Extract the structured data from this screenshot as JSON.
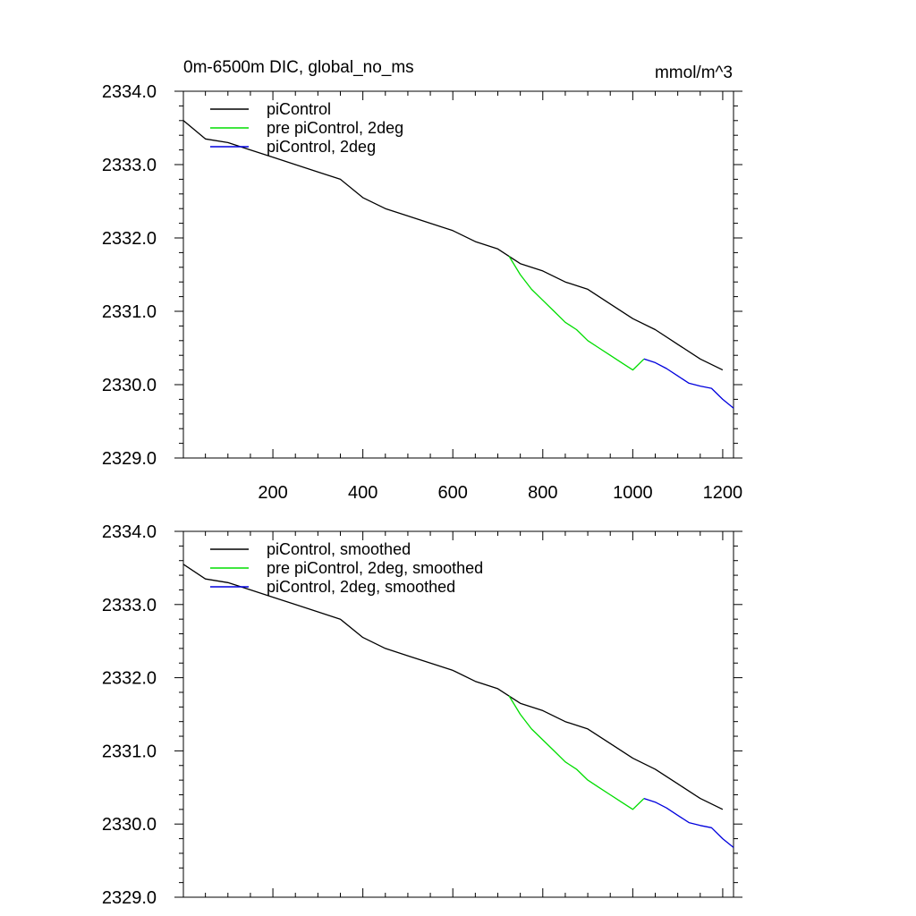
{
  "page": {
    "title": "0m-6500m DIC, global_no_ms",
    "units": "mmol/m^3"
  },
  "chart_data": [
    {
      "type": "line",
      "title": "0m-6500m DIC, global_no_ms",
      "units_label": "mmol/m^3",
      "xlabel": "",
      "ylabel": "",
      "xlim": [
        1,
        1224
      ],
      "ylim": [
        2329.0,
        2334.0
      ],
      "x_ticks": [
        200,
        400,
        600,
        800,
        1000,
        1200
      ],
      "x_tick_labels": [
        "200",
        "400",
        "600",
        "800",
        "1000",
        "1200"
      ],
      "y_ticks": [
        2329.0,
        2330.0,
        2331.0,
        2332.0,
        2333.0,
        2334.0
      ],
      "y_tick_labels": [
        "2329.0",
        "2330.0",
        "2331.0",
        "2332.0",
        "2333.0",
        "2334.0"
      ],
      "grid": false,
      "legend_position": "top-left",
      "series": [
        {
          "name": "piControl",
          "color": "#000000",
          "x": [
            1,
            50,
            100,
            150,
            200,
            250,
            300,
            350,
            400,
            450,
            500,
            550,
            600,
            650,
            700,
            750,
            800,
            850,
            900,
            950,
            1000,
            1050,
            1100,
            1150,
            1200
          ],
          "y": [
            2333.6,
            2333.35,
            2333.3,
            2333.2,
            2333.1,
            2333.0,
            2332.9,
            2332.8,
            2332.55,
            2332.4,
            2332.3,
            2332.2,
            2332.1,
            2331.95,
            2331.85,
            2331.65,
            2331.55,
            2331.4,
            2331.3,
            2331.1,
            2330.9,
            2330.75,
            2330.55,
            2330.35,
            2330.2
          ]
        },
        {
          "name": "pre piControl, 2deg",
          "color": "#00dd00",
          "x": [
            725,
            750,
            775,
            800,
            825,
            850,
            875,
            900,
            925,
            950,
            975,
            1000,
            1025
          ],
          "y": [
            2331.75,
            2331.5,
            2331.3,
            2331.15,
            2331.0,
            2330.85,
            2330.75,
            2330.6,
            2330.5,
            2330.4,
            2330.3,
            2330.2,
            2330.35
          ]
        },
        {
          "name": "piControl, 2deg",
          "color": "#0000dd",
          "x": [
            1025,
            1050,
            1075,
            1100,
            1125,
            1150,
            1175,
            1200,
            1224
          ],
          "y": [
            2330.35,
            2330.3,
            2330.22,
            2330.12,
            2330.02,
            2329.98,
            2329.95,
            2329.8,
            2329.68
          ]
        }
      ]
    },
    {
      "type": "line",
      "title": "",
      "xlabel": "",
      "ylabel": "",
      "xlim": [
        1,
        1224
      ],
      "ylim": [
        2329.0,
        2334.0
      ],
      "x_ticks": [
        200,
        400,
        600,
        800,
        1000,
        1200
      ],
      "x_tick_labels": [],
      "y_ticks": [
        2329.0,
        2330.0,
        2331.0,
        2332.0,
        2333.0,
        2334.0
      ],
      "y_tick_labels": [
        "2329.0",
        "2330.0",
        "2331.0",
        "2332.0",
        "2333.0",
        "2334.0"
      ],
      "grid": false,
      "legend_position": "top-left",
      "series": [
        {
          "name": "piControl, smoothed",
          "color": "#000000",
          "x": [
            1,
            50,
            100,
            150,
            200,
            250,
            300,
            350,
            400,
            450,
            500,
            550,
            600,
            650,
            700,
            750,
            800,
            850,
            900,
            950,
            1000,
            1050,
            1100,
            1150,
            1200
          ],
          "y": [
            2333.55,
            2333.35,
            2333.3,
            2333.2,
            2333.1,
            2333.0,
            2332.9,
            2332.8,
            2332.55,
            2332.4,
            2332.3,
            2332.2,
            2332.1,
            2331.95,
            2331.85,
            2331.65,
            2331.55,
            2331.4,
            2331.3,
            2331.1,
            2330.9,
            2330.75,
            2330.55,
            2330.35,
            2330.2
          ]
        },
        {
          "name": "pre piControl, 2deg, smoothed",
          "color": "#00dd00",
          "x": [
            725,
            750,
            775,
            800,
            825,
            850,
            875,
            900,
            925,
            950,
            975,
            1000,
            1025
          ],
          "y": [
            2331.75,
            2331.5,
            2331.3,
            2331.15,
            2331.0,
            2330.85,
            2330.75,
            2330.6,
            2330.5,
            2330.4,
            2330.3,
            2330.2,
            2330.35
          ]
        },
        {
          "name": "piControl, 2deg, smoothed",
          "color": "#0000dd",
          "x": [
            1025,
            1050,
            1075,
            1100,
            1125,
            1150,
            1175,
            1200,
            1224
          ],
          "y": [
            2330.35,
            2330.3,
            2330.22,
            2330.12,
            2330.02,
            2329.98,
            2329.95,
            2329.8,
            2329.68
          ]
        }
      ]
    }
  ]
}
